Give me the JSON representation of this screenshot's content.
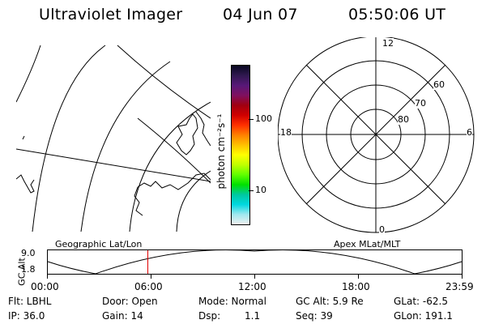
{
  "header": {
    "title": "Ultraviolet Imager",
    "date": "04 Jun 07",
    "time": "05:50:06 UT"
  },
  "colorbar": {
    "unit_label": "photon cm⁻²s⁻¹",
    "ticks": [
      "100",
      "10"
    ],
    "colors": [
      "#080820",
      "#301850",
      "#581878",
      "#801060",
      "#a00010",
      "#d00000",
      "#ff3000",
      "#ff8000",
      "#ffc000",
      "#ffff00",
      "#c0ff00",
      "#60ff00",
      "#00e000",
      "#00c8a0",
      "#00d8e0",
      "#a0e8f0",
      "#f0f0f0"
    ]
  },
  "polar_plot": {
    "mlt_labels": {
      "top": "12",
      "left": "18",
      "right": "6",
      "bottom": "0"
    },
    "lat_labels": [
      "60",
      "70",
      "80"
    ]
  },
  "timeline": {
    "left_title": "Geographic Lat/Lon",
    "right_title": "Apex MLat/MLT",
    "axis_label": "GC Alt",
    "y_ticks": [
      "9.0",
      "1.8"
    ],
    "x_ticks": [
      "00:00",
      "06:00",
      "12:00",
      "18:00",
      "23:59"
    ],
    "marker_time_fraction": 0.2431,
    "marker_color": "#e00000"
  },
  "status": {
    "flt": "Flt: LBHL",
    "ip": "IP: 36.0",
    "door": "Door: Open",
    "gain": "Gain: 14",
    "mode": "Mode: Normal",
    "dsp_label": "Dsp:",
    "dsp_value": "1.1",
    "gcalt": "GC Alt: 5.9 Re",
    "seq": "Seq: 39",
    "glat": "GLat: -62.5",
    "glon": "GLon: 191.1"
  }
}
